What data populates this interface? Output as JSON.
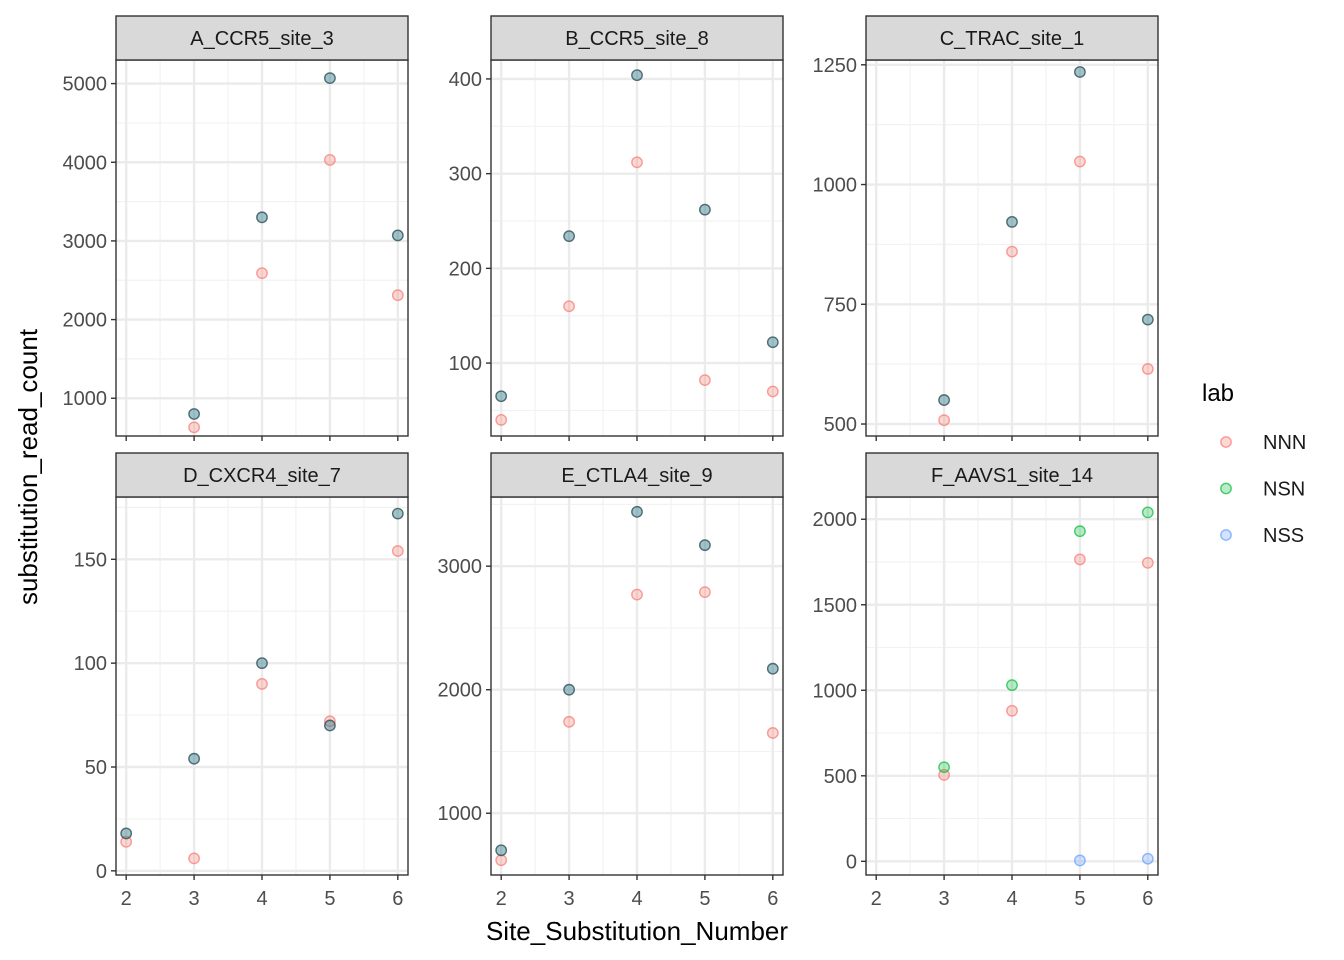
{
  "chart_data": {
    "type": "scatter",
    "xlabel": "Site_Substitution_Number",
    "ylabel": "substitution_read_count",
    "legend": {
      "title": "lab",
      "position": "right",
      "items": [
        {
          "name": "NNN",
          "color": "#F8766D"
        },
        {
          "name": "NSN",
          "color": "#00BA38"
        },
        {
          "name": "NSS",
          "color": "#619CFF"
        }
      ]
    },
    "highlight_color": "#2E7D8C",
    "x_ticks": [
      "2",
      "3",
      "4",
      "5",
      "6"
    ],
    "xlim": [
      1.85,
      6.15
    ],
    "grid": true,
    "panels": [
      {
        "title": "A_CCR5_site_3",
        "ylim": [
          520,
          5300
        ],
        "yticks": [
          "1000",
          "2000",
          "3000",
          "4000",
          "5000"
        ],
        "points": [
          {
            "series": "NNN",
            "x": 3,
            "y": 630
          },
          {
            "series": "NNN",
            "x": 4,
            "y": 2590
          },
          {
            "series": "NNN",
            "x": 5,
            "y": 4030
          },
          {
            "series": "NNN",
            "x": 6,
            "y": 2310
          },
          {
            "series": "highlight",
            "x": 3,
            "y": 800
          },
          {
            "series": "highlight",
            "x": 4,
            "y": 3300
          },
          {
            "series": "highlight",
            "x": 5,
            "y": 5070
          },
          {
            "series": "highlight",
            "x": 6,
            "y": 3070
          }
        ]
      },
      {
        "title": "B_CCR5_site_8",
        "ylim": [
          23,
          420
        ],
        "yticks": [
          "100",
          "200",
          "300",
          "400"
        ],
        "points": [
          {
            "series": "NNN",
            "x": 2,
            "y": 40
          },
          {
            "series": "NNN",
            "x": 3,
            "y": 160
          },
          {
            "series": "NNN",
            "x": 4,
            "y": 312
          },
          {
            "series": "NNN",
            "x": 5,
            "y": 82
          },
          {
            "series": "NNN",
            "x": 6,
            "y": 70
          },
          {
            "series": "highlight",
            "x": 2,
            "y": 65
          },
          {
            "series": "highlight",
            "x": 3,
            "y": 234
          },
          {
            "series": "highlight",
            "x": 4,
            "y": 404
          },
          {
            "series": "highlight",
            "x": 5,
            "y": 262
          },
          {
            "series": "highlight",
            "x": 6,
            "y": 122
          }
        ]
      },
      {
        "title": "C_TRAC_site_1",
        "ylim": [
          475,
          1260
        ],
        "yticks": [
          "500",
          "750",
          "1000",
          "1250"
        ],
        "points": [
          {
            "series": "NNN",
            "x": 3,
            "y": 508
          },
          {
            "series": "NNN",
            "x": 4,
            "y": 860
          },
          {
            "series": "NNN",
            "x": 5,
            "y": 1048
          },
          {
            "series": "NNN",
            "x": 6,
            "y": 615
          },
          {
            "series": "highlight",
            "x": 3,
            "y": 550
          },
          {
            "series": "highlight",
            "x": 4,
            "y": 922
          },
          {
            "series": "highlight",
            "x": 5,
            "y": 1235
          },
          {
            "series": "highlight",
            "x": 6,
            "y": 718
          }
        ]
      },
      {
        "title": "D_CXCR4_site_7",
        "ylim": [
          -2,
          180
        ],
        "yticks": [
          "0",
          "50",
          "100",
          "150"
        ],
        "points": [
          {
            "series": "NNN",
            "x": 2,
            "y": 14
          },
          {
            "series": "NNN",
            "x": 3,
            "y": 6
          },
          {
            "series": "NNN",
            "x": 4,
            "y": 90
          },
          {
            "series": "NNN",
            "x": 5,
            "y": 72
          },
          {
            "series": "NNN",
            "x": 6,
            "y": 154
          },
          {
            "series": "highlight",
            "x": 2,
            "y": 18
          },
          {
            "series": "highlight",
            "x": 3,
            "y": 54
          },
          {
            "series": "highlight",
            "x": 4,
            "y": 100
          },
          {
            "series": "highlight",
            "x": 5,
            "y": 70
          },
          {
            "series": "highlight",
            "x": 6,
            "y": 172
          }
        ]
      },
      {
        "title": "E_CTLA4_site_9",
        "ylim": [
          500,
          3560
        ],
        "yticks": [
          "1000",
          "2000",
          "3000"
        ],
        "points": [
          {
            "series": "NNN",
            "x": 2,
            "y": 620
          },
          {
            "series": "NNN",
            "x": 3,
            "y": 1740
          },
          {
            "series": "NNN",
            "x": 4,
            "y": 2770
          },
          {
            "series": "NNN",
            "x": 5,
            "y": 2790
          },
          {
            "series": "NNN",
            "x": 6,
            "y": 1650
          },
          {
            "series": "highlight",
            "x": 2,
            "y": 700
          },
          {
            "series": "highlight",
            "x": 3,
            "y": 2000
          },
          {
            "series": "highlight",
            "x": 4,
            "y": 3440
          },
          {
            "series": "highlight",
            "x": 5,
            "y": 3170
          },
          {
            "series": "highlight",
            "x": 6,
            "y": 2170
          }
        ]
      },
      {
        "title": "F_AAVS1_site_14",
        "ylim": [
          -80,
          2130
        ],
        "yticks": [
          "0",
          "500",
          "1000",
          "1500",
          "2000"
        ],
        "points": [
          {
            "series": "NNN",
            "x": 3,
            "y": 505
          },
          {
            "series": "NNN",
            "x": 4,
            "y": 880
          },
          {
            "series": "NNN",
            "x": 5,
            "y": 1765
          },
          {
            "series": "NNN",
            "x": 6,
            "y": 1745
          },
          {
            "series": "NSN",
            "x": 3,
            "y": 550
          },
          {
            "series": "NSN",
            "x": 4,
            "y": 1030
          },
          {
            "series": "NSN",
            "x": 5,
            "y": 1930
          },
          {
            "series": "NSN",
            "x": 6,
            "y": 2040
          },
          {
            "series": "NSS",
            "x": 5,
            "y": 5
          },
          {
            "series": "NSS",
            "x": 6,
            "y": 15
          }
        ]
      }
    ]
  }
}
